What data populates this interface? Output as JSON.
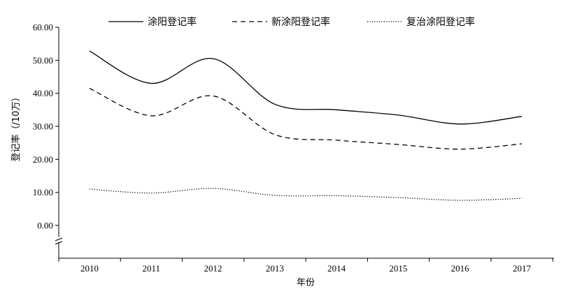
{
  "chart_data": {
    "type": "line",
    "title": "",
    "xlabel": "年份",
    "ylabel": "登记率（/10万）",
    "categories": [
      "2010",
      "2011",
      "2012",
      "2013",
      "2014",
      "2015",
      "2016",
      "2017"
    ],
    "y_ticks": [
      "0.00",
      "10.00",
      "20.00",
      "30.00",
      "40.00",
      "50.00",
      "60.00"
    ],
    "ylim": [
      0,
      60
    ],
    "y_axis_break": true,
    "grid": false,
    "legend_position": "top",
    "series": [
      {
        "name": "涂阳登记率",
        "style": "solid",
        "values": [
          52.8,
          43.0,
          50.5,
          36.7,
          35.0,
          33.4,
          30.7,
          33.0
        ]
      },
      {
        "name": "新涂阳登记率",
        "style": "dashed",
        "values": [
          41.5,
          33.2,
          39.2,
          27.5,
          25.8,
          24.5,
          23.1,
          24.7
        ]
      },
      {
        "name": "复治涂阳登记率",
        "style": "dotted",
        "values": [
          11.0,
          9.8,
          11.2,
          9.1,
          9.0,
          8.4,
          7.6,
          8.2
        ]
      }
    ]
  }
}
